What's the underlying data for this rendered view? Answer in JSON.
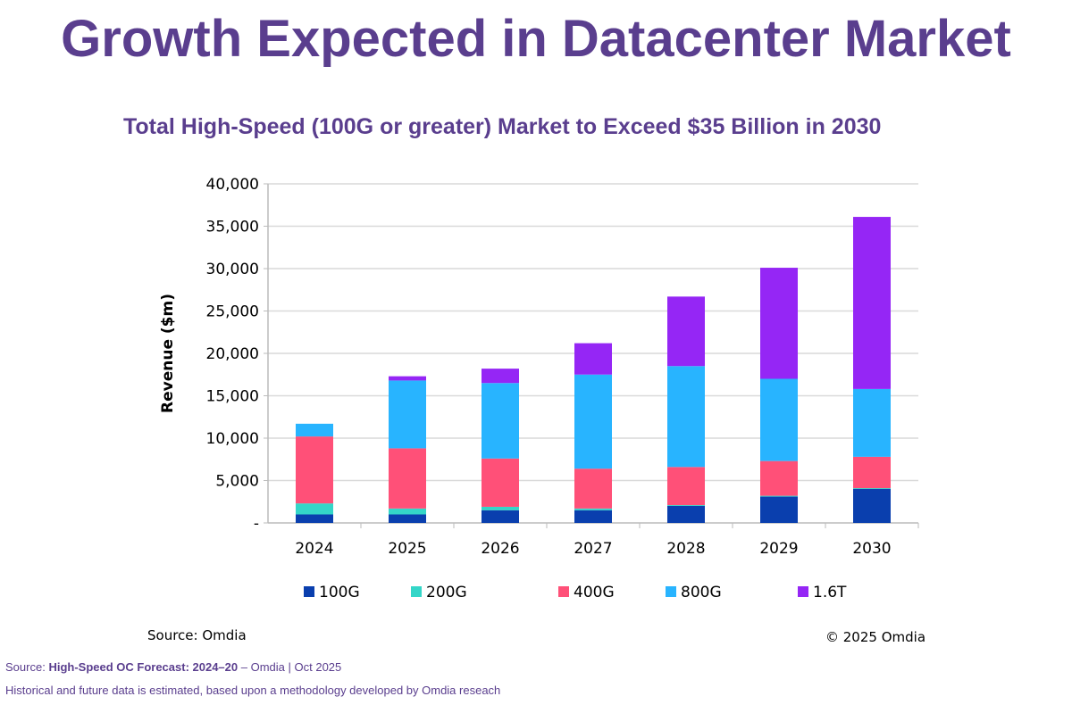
{
  "title": "Growth Expected in Datacenter Market",
  "chart_data": {
    "type": "bar",
    "stacked": true,
    "title": "Total High-Speed (100G or greater) Market to Exceed $35 Billion in 2030",
    "xlabel": "",
    "ylabel": "Revenue ($m)",
    "ylim": [
      0,
      40000
    ],
    "yticks": [
      "-",
      "5,000",
      "10,000",
      "15,000",
      "20,000",
      "25,000",
      "30,000",
      "35,000",
      "40,000"
    ],
    "grid": true,
    "legend": "bottom",
    "categories": [
      "2024",
      "2025",
      "2026",
      "2027",
      "2028",
      "2029",
      "2030"
    ],
    "series": [
      {
        "name": "100G",
        "color": "#0a3fae",
        "values": [
          1000,
          1000,
          1500,
          1500,
          2000,
          3100,
          4000
        ]
      },
      {
        "name": "200G",
        "color": "#34d6c8",
        "values": [
          1300,
          700,
          400,
          200,
          100,
          100,
          100
        ]
      },
      {
        "name": "400G",
        "color": "#ff5078",
        "values": [
          7900,
          7100,
          5700,
          4700,
          4500,
          4100,
          3700
        ]
      },
      {
        "name": "800G",
        "color": "#28b4ff",
        "values": [
          1500,
          8000,
          8900,
          11100,
          11900,
          9700,
          8000
        ]
      },
      {
        "name": "1.6T",
        "color": "#9526f5",
        "values": [
          0,
          500,
          1700,
          3700,
          8200,
          13100,
          20300
        ]
      }
    ]
  },
  "source_inner": "Source: Omdia",
  "copyright": "© 2025 Omdia",
  "footer": {
    "source_prefix": "Source:",
    "source_bold": "High-Speed OC Forecast: 2024–20",
    "source_rest": "– Omdia | Oct 2025",
    "note": "Historical and future data is estimated, based upon a methodology developed by Omdia reseach"
  }
}
